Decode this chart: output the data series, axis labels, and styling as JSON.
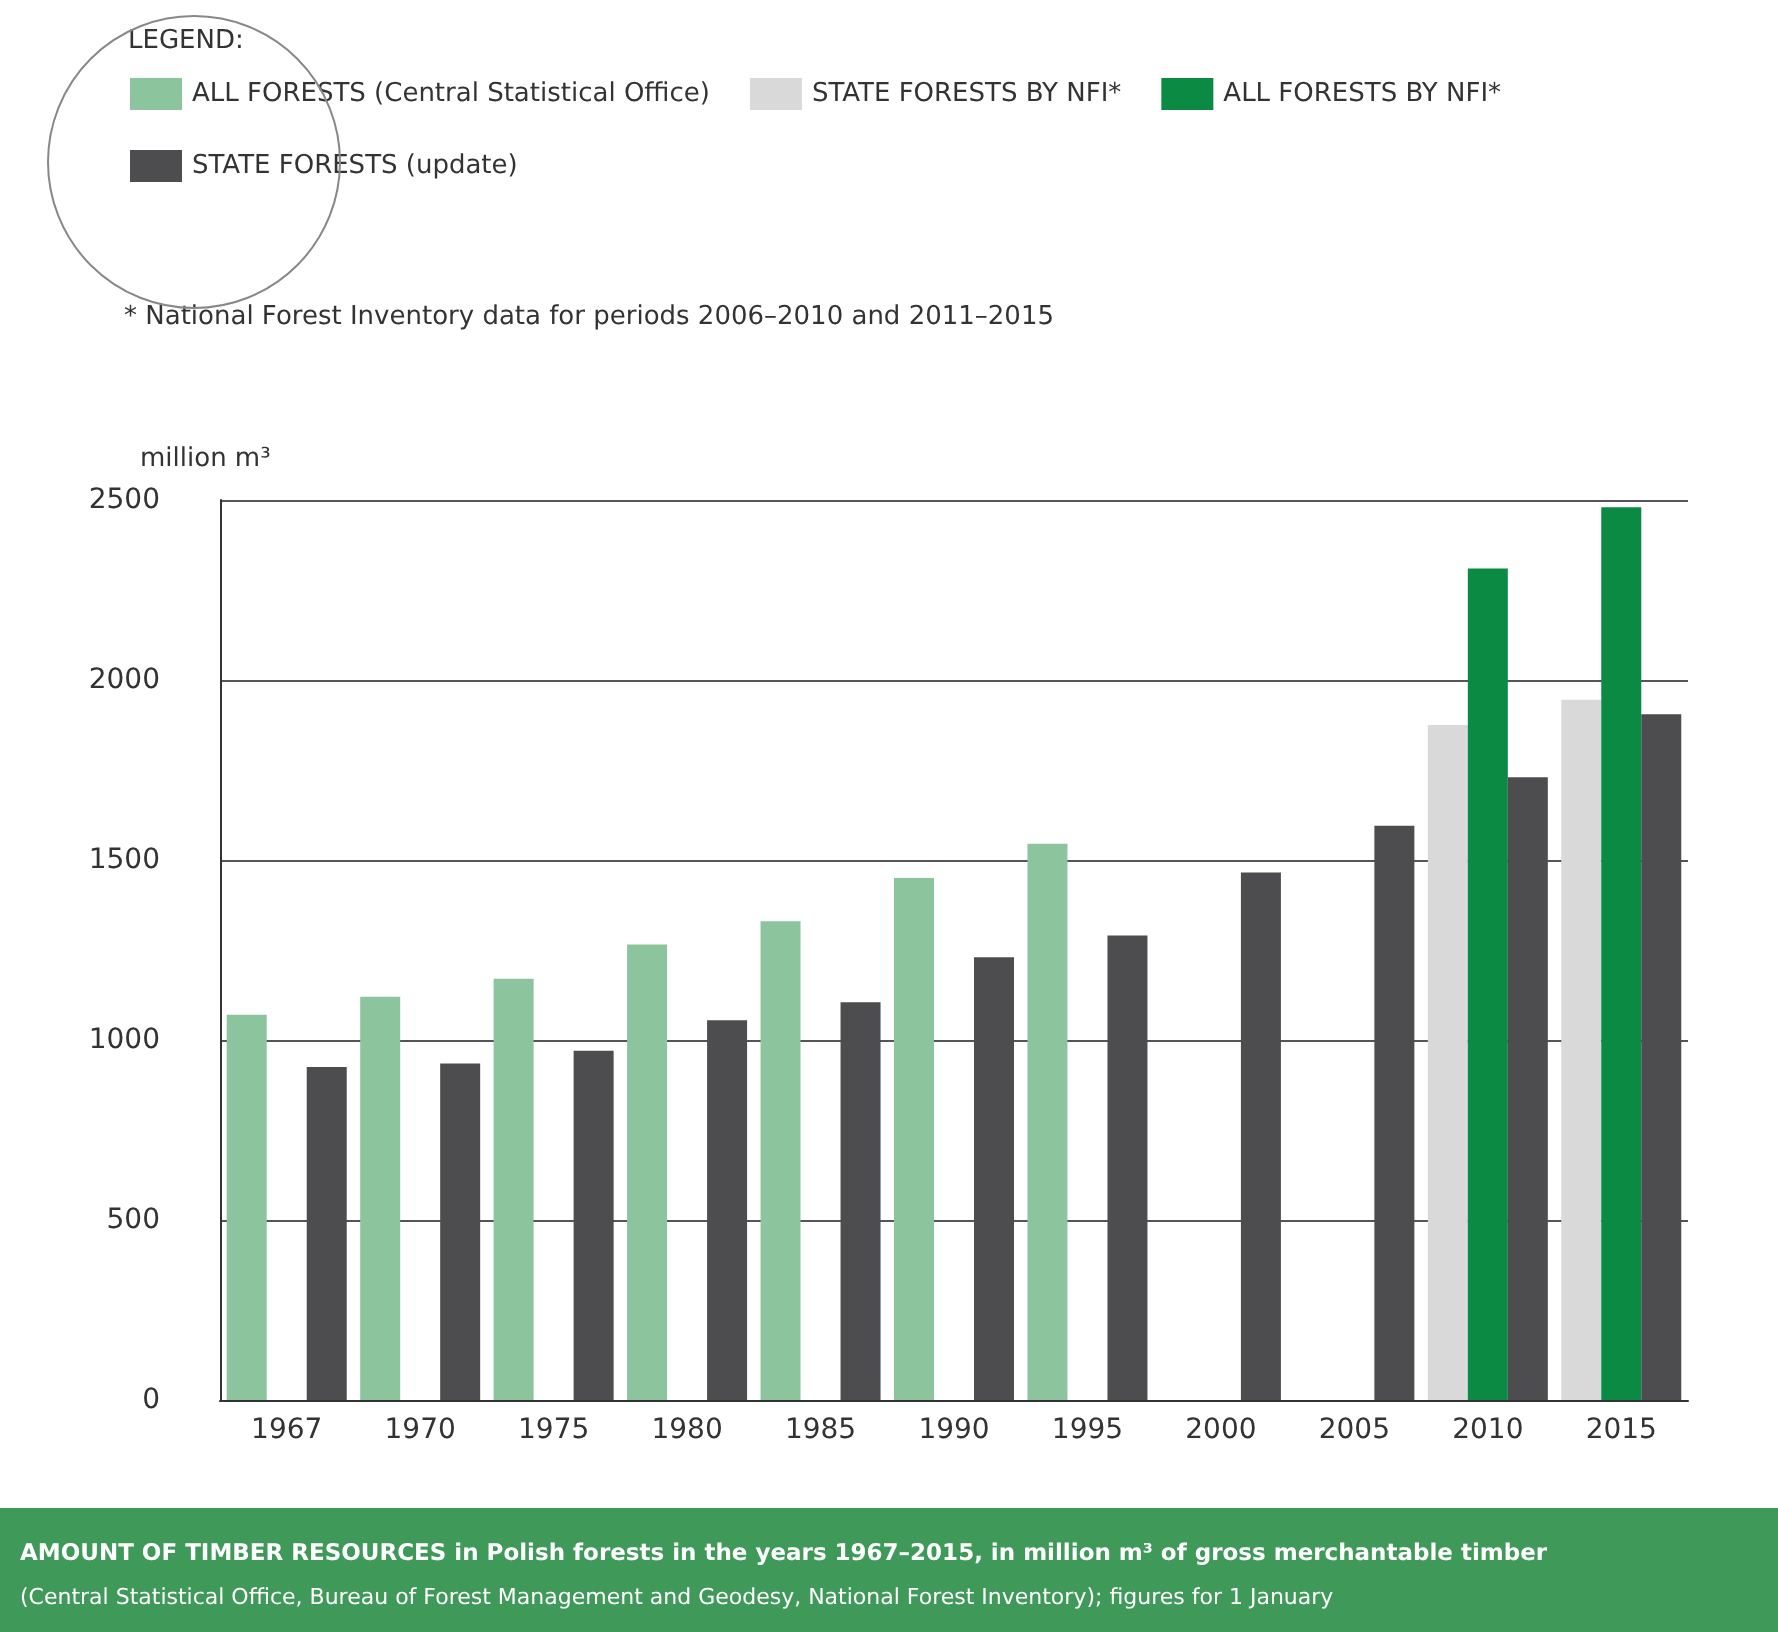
{
  "chart_data": {
    "type": "bar",
    "title": "AMOUNT OF TIMBER RESOURCES in Polish forests in the years 1967–2015, in million m³ of gross merchantable timber",
    "subtitle": "(Central Statistical Office, Bureau of Forest Management and Geodesy, National Forest Inventory); figures for 1 January",
    "ylabel": "million m³",
    "legend_title": "LEGEND:",
    "legend": "top left",
    "grid": "y",
    "annotations": [
      "* National Forest Inventory data for periods 2006–2010 and 2011–2015"
    ],
    "categories": [
      "1967",
      "1970",
      "1975",
      "1980",
      "1985",
      "1990",
      "1995",
      "2000",
      "2005",
      "2010",
      "2015"
    ],
    "ylim": [
      0,
      2500
    ],
    "yticks": [
      0,
      500,
      1000,
      1500,
      2000,
      2500
    ],
    "series": [
      {
        "name": "ALL FORESTS (Central Statistical Office)",
        "color": "#8cc49e",
        "values": [
          1070,
          1120,
          1170,
          1265,
          1330,
          1450,
          1545,
          null,
          null,
          null,
          null
        ]
      },
      {
        "name": "STATE FORESTS BY NFI*",
        "color": "#d9d9d9",
        "values": [
          null,
          null,
          null,
          null,
          null,
          null,
          null,
          null,
          null,
          1875,
          1945
        ]
      },
      {
        "name": "ALL FORESTS BY NFI*",
        "color": "#0a8a43",
        "values": [
          null,
          null,
          null,
          null,
          null,
          null,
          null,
          null,
          null,
          2310,
          2480
        ]
      },
      {
        "name": "STATE FORESTS (update)",
        "color": "#4d4d4f",
        "values": [
          925,
          935,
          970,
          1055,
          1105,
          1230,
          1290,
          1465,
          1595,
          1730,
          1905
        ]
      }
    ]
  }
}
